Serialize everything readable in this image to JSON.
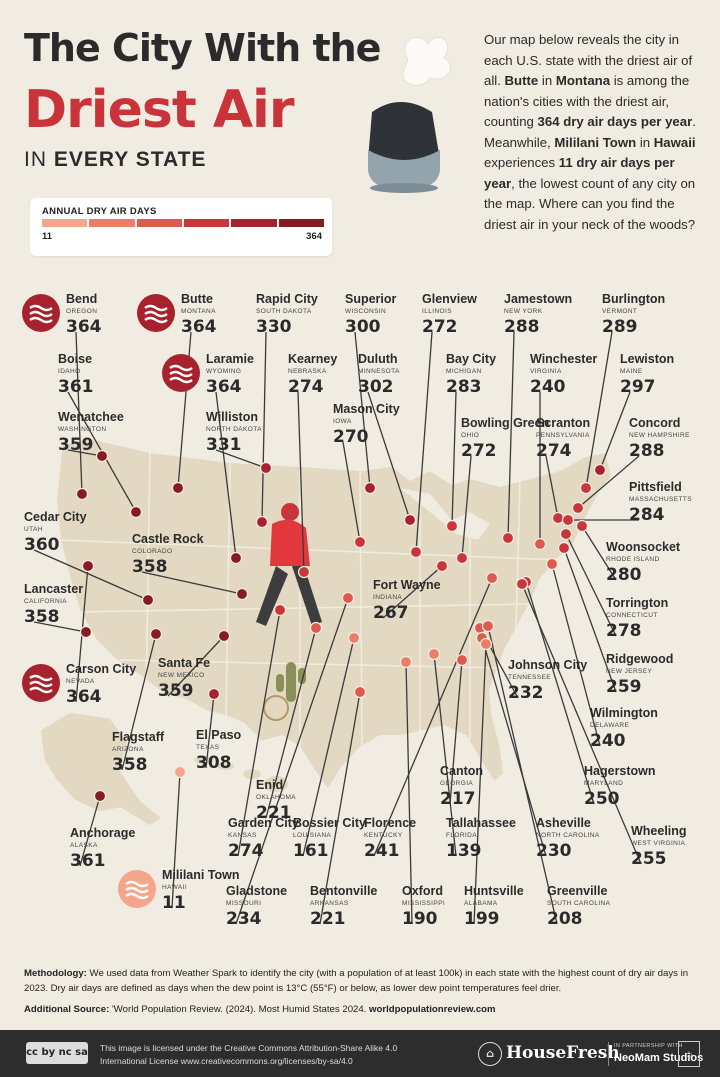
{
  "title": {
    "line1": "The City With the",
    "line2": "Driest Air",
    "line3_prefix": "IN",
    "line3_bold": "EVERY STATE"
  },
  "intro": {
    "parts": [
      {
        "t": "Our map below reveals the city in each U.S. state with the driest air of all. ",
        "b": false
      },
      {
        "t": "Butte",
        "b": true
      },
      {
        "t": " in ",
        "b": false
      },
      {
        "t": "Montana",
        "b": true
      },
      {
        "t": " is among the nation's cities with the driest air, counting ",
        "b": false
      },
      {
        "t": "364 dry air days per year",
        "b": true
      },
      {
        "t": ". Meanwhile, ",
        "b": false
      },
      {
        "t": "Mililani Town",
        "b": true
      },
      {
        "t": " in ",
        "b": false
      },
      {
        "t": "Hawaii",
        "b": true
      },
      {
        "t": " experiences ",
        "b": false
      },
      {
        "t": "11 dry air days per year",
        "b": true
      },
      {
        "t": ", the lowest count of any city on the map. Where can you find the driest air in your neck of the woods?",
        "b": false
      }
    ]
  },
  "legend": {
    "title": "ANNUAL DRY AIR DAYS",
    "min": "11",
    "max": "364",
    "colors": [
      "#f5a58a",
      "#ec7e68",
      "#de5a4e",
      "#c8353b",
      "#a8222d",
      "#871a23"
    ]
  },
  "colors": {
    "accent": "#c9343b",
    "dark_red": "#871a23",
    "pink": "#f1a08a",
    "map": "#e3d8c2",
    "map_border": "#f1ece2",
    "text": "#2b2b2b"
  },
  "cities": [
    {
      "id": "bend",
      "name": "Bend",
      "state": "OREGON",
      "value": 364,
      "badge": true
    },
    {
      "id": "butte",
      "name": "Butte",
      "state": "MONTANA",
      "value": 364,
      "badge": true
    },
    {
      "id": "rapid-city",
      "name": "Rapid City",
      "state": "SOUTH DAKOTA",
      "value": 330
    },
    {
      "id": "superior",
      "name": "Superior",
      "state": "WISCONSIN",
      "value": 300
    },
    {
      "id": "glenview",
      "name": "Glenview",
      "state": "ILLINOIS",
      "value": 272
    },
    {
      "id": "jamestown",
      "name": "Jamestown",
      "state": "NEW YORK",
      "value": 288
    },
    {
      "id": "burlington",
      "name": "Burlington",
      "state": "VERMONT",
      "value": 289
    },
    {
      "id": "boise",
      "name": "Boise",
      "state": "IDAHO",
      "value": 361
    },
    {
      "id": "laramie",
      "name": "Laramie",
      "state": "WYOMING",
      "value": 364,
      "badge": true
    },
    {
      "id": "kearney",
      "name": "Kearney",
      "state": "NEBRASKA",
      "value": 274
    },
    {
      "id": "duluth",
      "name": "Duluth",
      "state": "MINNESOTA",
      "value": 302
    },
    {
      "id": "bay-city",
      "name": "Bay City",
      "state": "MICHIGAN",
      "value": 283
    },
    {
      "id": "winchester",
      "name": "Winchester",
      "state": "VIRGINIA",
      "value": 240
    },
    {
      "id": "lewiston",
      "name": "Lewiston",
      "state": "MAINE",
      "value": 297
    },
    {
      "id": "wenatchee",
      "name": "Wenatchee",
      "state": "WASHINGTON",
      "value": 359
    },
    {
      "id": "williston",
      "name": "Williston",
      "state": "NORTH DAKOTA",
      "value": 331
    },
    {
      "id": "mason-city",
      "name": "Mason City",
      "state": "IOWA",
      "value": 270
    },
    {
      "id": "bowling-green",
      "name": "Bowling Green",
      "state": "OHIO",
      "value": 272
    },
    {
      "id": "scranton",
      "name": "Scranton",
      "state": "PENNSYLVANIA",
      "value": 274
    },
    {
      "id": "concord",
      "name": "Concord",
      "state": "NEW HAMPSHIRE",
      "value": 288
    },
    {
      "id": "pittsfield",
      "name": "Pittsfield",
      "state": "MASSACHUSETTS",
      "value": 284
    },
    {
      "id": "cedar-city",
      "name": "Cedar City",
      "state": "UTAH",
      "value": 360
    },
    {
      "id": "castle-rock",
      "name": "Castle Rock",
      "state": "COLORADO",
      "value": 358
    },
    {
      "id": "woonsocket",
      "name": "Woonsocket",
      "state": "RHODE ISLAND",
      "value": 280
    },
    {
      "id": "fort-wayne",
      "name": "Fort Wayne",
      "state": "INDIANA",
      "value": 267
    },
    {
      "id": "lancaster",
      "name": "Lancaster",
      "state": "CALIFORNIA",
      "value": 358
    },
    {
      "id": "torrington",
      "name": "Torrington",
      "state": "CONNECTICUT",
      "value": 278
    },
    {
      "id": "ridgewood",
      "name": "Ridgewood",
      "state": "NEW JERSEY",
      "value": 259
    },
    {
      "id": "carson-city",
      "name": "Carson City",
      "state": "NEVADA",
      "value": 364,
      "badge": true
    },
    {
      "id": "santa-fe",
      "name": "Santa Fe",
      "state": "NEW MEXICO",
      "value": 359
    },
    {
      "id": "johnson-city",
      "name": "Johnson City",
      "state": "TENNESSEE",
      "value": 232
    },
    {
      "id": "wilmington",
      "name": "Wilmington",
      "state": "DELAWARE",
      "value": 240
    },
    {
      "id": "flagstaff",
      "name": "Flagstaff",
      "state": "ARIZONA",
      "value": 358
    },
    {
      "id": "el-paso",
      "name": "El Paso",
      "state": "TEXAS",
      "value": 308
    },
    {
      "id": "enid",
      "name": "Enid",
      "state": "OKLAHOMA",
      "value": 221
    },
    {
      "id": "hagerstown",
      "name": "Hagerstown",
      "state": "MARYLAND",
      "value": 250
    },
    {
      "id": "canton",
      "name": "Canton",
      "state": "GEORGIA",
      "value": 217
    },
    {
      "id": "anchorage",
      "name": "Anchorage",
      "state": "ALASKA",
      "value": 361
    },
    {
      "id": "garden-city",
      "name": "Garden City",
      "state": "KANSAS",
      "value": 274
    },
    {
      "id": "bossier-city",
      "name": "Bossier City",
      "state": "LOUISIANA",
      "value": 161
    },
    {
      "id": "florence",
      "name": "Florence",
      "state": "KENTUCKY",
      "value": 241
    },
    {
      "id": "tallahassee",
      "name": "Tallahassee",
      "state": "FLORIDA",
      "value": 139
    },
    {
      "id": "asheville",
      "name": "Asheville",
      "state": "NORTH CAROLINA",
      "value": 230
    },
    {
      "id": "wheeling",
      "name": "Wheeling",
      "state": "WEST VIRGINIA",
      "value": 255
    },
    {
      "id": "mililani-town",
      "name": "Mililani Town",
      "state": "HAWAII",
      "value": 11,
      "badge": true
    },
    {
      "id": "gladstone",
      "name": "Gladstone",
      "state": "MISSOURI",
      "value": 234
    },
    {
      "id": "bentonville",
      "name": "Bentonville",
      "state": "ARKANSAS",
      "value": 221
    },
    {
      "id": "oxford",
      "name": "Oxford",
      "state": "MISSISSIPPI",
      "value": 190
    },
    {
      "id": "huntsville",
      "name": "Huntsville",
      "state": "ALABAMA",
      "value": 199
    },
    {
      "id": "greenville",
      "name": "Greenville",
      "state": "SOUTH CAROLINA",
      "value": 208
    }
  ],
  "methodology": {
    "label": "Methodology:",
    "text": " We used data from Weather Spark to identify the city (with a population of at least 100k) in each state with the highest count of dry air days in 2023. Dry air days are defined as days when the dew point is 13°C (55°F) or below, as lower dew point temperatures feel drier."
  },
  "source": {
    "label": "Additional Source:",
    "text": " 'World Population Review. (2024). Most Humid States 2024. ",
    "link": "worldpopulationreview.com"
  },
  "footer": {
    "cc_badge": "cc by nc sa",
    "license": "This image is licensed under the Creative Commons Attribution-Share Alike 4.0 International License www.creativecommons.org/licenses/by-sa/4.0",
    "brand": "HouseFresh",
    "partner_label": "IN PARTNERSHIP WITH",
    "partner": "NeoMam Studios"
  }
}
